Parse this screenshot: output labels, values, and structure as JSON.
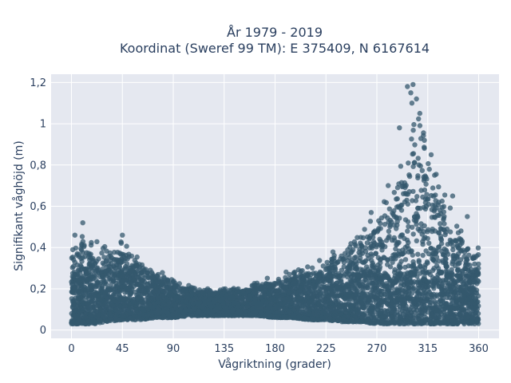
{
  "chart_data": {
    "type": "scatter",
    "title_line1": "År 1979 - 2019",
    "title_line2": "Koordinat (Sweref 99 TM): E 375409, N 6167614",
    "xlabel": "Vågriktning (grader)",
    "ylabel": "Signifikant våghöjd (m)",
    "xlim": [
      -18,
      378
    ],
    "ylim": [
      -0.04,
      1.24
    ],
    "xticks": [
      0,
      45,
      90,
      135,
      180,
      225,
      270,
      315,
      360
    ],
    "xtick_labels": [
      "0",
      "45",
      "90",
      "135",
      "180",
      "225",
      "270",
      "315",
      "360"
    ],
    "yticks": [
      0,
      0.2,
      0.4,
      0.6,
      0.8,
      1.0,
      1.2
    ],
    "ytick_labels": [
      "0",
      "0,2",
      "0,4",
      "0,6",
      "0,8",
      "1",
      "1,2"
    ],
    "grid": true,
    "marker_color": "#34586e",
    "plot_bg": "#e5e8f0",
    "envelope": {
      "direction": [
        0,
        10,
        20,
        30,
        45,
        60,
        75,
        90,
        105,
        120,
        135,
        150,
        165,
        180,
        195,
        210,
        225,
        240,
        255,
        270,
        280,
        290,
        300,
        305,
        310,
        315,
        320,
        330,
        340,
        350,
        360
      ],
      "upper": [
        0.42,
        0.5,
        0.45,
        0.42,
        0.45,
        0.36,
        0.31,
        0.25,
        0.22,
        0.21,
        0.21,
        0.22,
        0.24,
        0.27,
        0.3,
        0.33,
        0.36,
        0.42,
        0.5,
        0.62,
        0.7,
        0.82,
        0.98,
        1.18,
        1.1,
        0.95,
        0.85,
        0.7,
        0.58,
        0.45,
        0.42
      ],
      "lower": [
        0.03,
        0.03,
        0.03,
        0.04,
        0.05,
        0.05,
        0.06,
        0.06,
        0.07,
        0.07,
        0.07,
        0.07,
        0.07,
        0.06,
        0.06,
        0.05,
        0.05,
        0.04,
        0.04,
        0.03,
        0.03,
        0.03,
        0.03,
        0.03,
        0.03,
        0.03,
        0.03,
        0.03,
        0.03,
        0.03,
        0.03
      ]
    },
    "peak_points": [
      {
        "x": 297,
        "y": 1.18
      },
      {
        "x": 302,
        "y": 1.19
      },
      {
        "x": 300,
        "y": 1.15
      },
      {
        "x": 305,
        "y": 1.12
      },
      {
        "x": 301,
        "y": 1.1
      },
      {
        "x": 308,
        "y": 1.05
      },
      {
        "x": 290,
        "y": 0.98
      },
      {
        "x": 312,
        "y": 0.92
      },
      {
        "x": 318,
        "y": 0.85
      },
      {
        "x": 10,
        "y": 0.52
      },
      {
        "x": 45,
        "y": 0.46
      },
      {
        "x": 3,
        "y": 0.46
      },
      {
        "x": 280,
        "y": 0.7
      },
      {
        "x": 265,
        "y": 0.57
      },
      {
        "x": 350,
        "y": 0.55
      },
      {
        "x": 337,
        "y": 0.65
      }
    ]
  }
}
